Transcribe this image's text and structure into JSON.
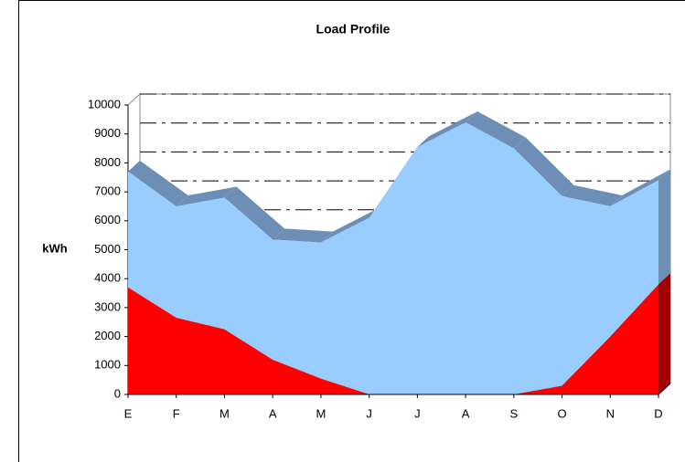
{
  "chart_data": {
    "type": "area",
    "title": "Load Profile",
    "y_label": "kWh",
    "categories": [
      "E",
      "F",
      "M",
      "A",
      "M",
      "J",
      "J",
      "A",
      "S",
      "O",
      "N",
      "D"
    ],
    "stacked": true,
    "series": [
      {
        "color": "#ff0000",
        "values": [
          3700,
          2650,
          2250,
          1200,
          550,
          0,
          0,
          0,
          0,
          300,
          2000,
          3800
        ]
      },
      {
        "color": "#99ccff",
        "values": [
          4000,
          3850,
          4550,
          4150,
          4700,
          6100,
          8550,
          9400,
          8500,
          6550,
          4500,
          3600
        ]
      }
    ],
    "ylim": [
      0,
      10000
    ],
    "yticks": [
      0,
      1000,
      2000,
      3000,
      4000,
      5000,
      6000,
      7000,
      8000,
      9000,
      10000
    ],
    "grid": true
  }
}
